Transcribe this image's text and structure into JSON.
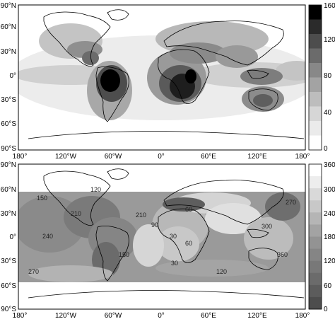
{
  "top_panel": {
    "y_tick_labels": [
      "90°N",
      "60°N",
      "30°N",
      "0°",
      "30°S",
      "60°S",
      "90°S"
    ],
    "x_tick_labels": [
      "180°",
      "120°W",
      "60°W",
      "0°",
      "60°E",
      "120°E",
      "180°"
    ],
    "colorbar_tick_labels": [
      "160",
      "120",
      "80",
      "40",
      "0"
    ],
    "colorbar_range": [
      0,
      160
    ],
    "colorbar_colors": [
      "#000000",
      "#2b2b2b",
      "#4d4d4d",
      "#6b6b6b",
      "#888888",
      "#a3a3a3",
      "#bdbdbd",
      "#d6d6d6",
      "#ebebeb",
      "#ffffff"
    ]
  },
  "bottom_panel": {
    "y_tick_labels": [
      "90°N",
      "60°N",
      "30°N",
      "0°",
      "30°S",
      "60°S",
      "90°S"
    ],
    "x_tick_labels": [
      "180°",
      "120°W",
      "60°W",
      "0°",
      "60°E",
      "120°E",
      "180°"
    ],
    "colorbar_tick_labels": [
      "360",
      "300",
      "240",
      "180",
      "120",
      "60",
      "0"
    ],
    "colorbar_range": [
      0,
      360
    ],
    "colorbar_colors": [
      "#ffffff",
      "#ededed",
      "#d9d9d9",
      "#c8c8c8",
      "#b5b5b5",
      "#a3a3a3",
      "#939393",
      "#858585",
      "#787878",
      "#6b6b6b",
      "#5c5c5c",
      "#4d4d4d"
    ],
    "contour_labels": [
      "150",
      "120",
      "210",
      "210",
      "240",
      "270",
      "90",
      "60",
      "30",
      "60",
      "120",
      "150",
      "30",
      "270",
      "300",
      "360"
    ]
  }
}
